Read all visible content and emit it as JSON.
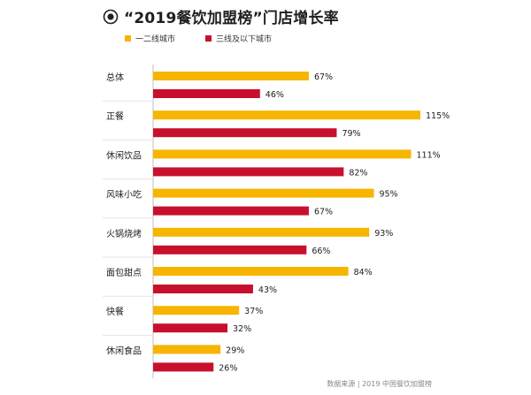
{
  "title": "“2019餐饮加盟榜”门店增长率",
  "title_icon": "target-circle-icon",
  "legend": [
    {
      "name": "一二线城市",
      "color": "#F7B500"
    },
    {
      "name": "三线及以下城市",
      "color": "#C8102E"
    }
  ],
  "footer": "数据来源 | 2019 中国餐饮加盟榜",
  "chart_data": {
    "type": "bar",
    "orientation": "horizontal",
    "categories": [
      "总体",
      "正餐",
      "休闲饮品",
      "风味小吃",
      "火锅烧烤",
      "面包甜点",
      "快餐",
      "休闲食品"
    ],
    "series": [
      {
        "name": "一二线城市",
        "color": "#F7B500",
        "values": [
          67,
          115,
          111,
          95,
          93,
          84,
          37,
          29
        ],
        "labels": [
          "67%",
          "115%",
          "111%",
          "95%",
          "93%",
          "84%",
          "37%",
          "29%"
        ]
      },
      {
        "name": "三线及以下城市",
        "color": "#C8102E",
        "values": [
          46,
          79,
          82,
          67,
          66,
          43,
          32,
          26
        ],
        "labels": [
          "46%",
          "79%",
          "82%",
          "67%",
          "66%",
          "43%",
          "32%",
          "26%"
        ]
      }
    ],
    "grid": false,
    "legend_position": "top-left",
    "title": "“2019餐饮加盟榜”门店增长率"
  }
}
